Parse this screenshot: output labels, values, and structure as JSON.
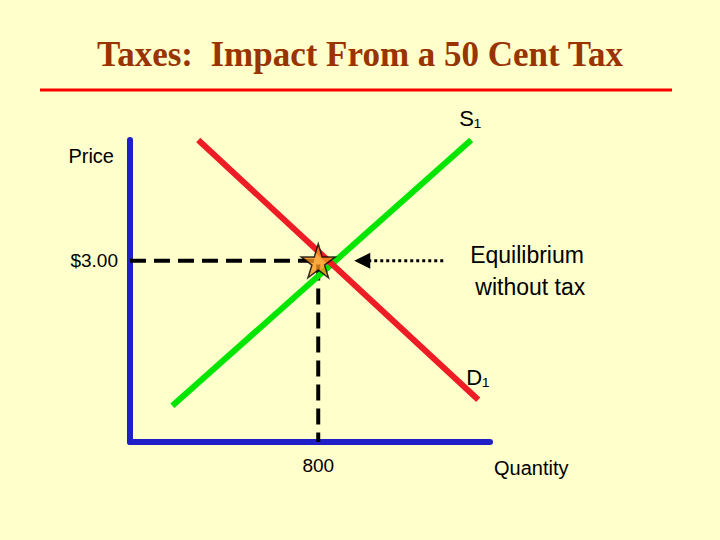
{
  "chart_data": {
    "type": "line",
    "title": "Taxes:  Impact From a 50 Cent Tax",
    "x_label": "Quantity",
    "y_label": "Price",
    "xlim": [
      0,
      1530
    ],
    "ylim": [
      0,
      5
    ],
    "xticks": [
      800
    ],
    "yticks": [
      {
        "value": 3,
        "label": "$3.00"
      }
    ],
    "grid": false,
    "series": [
      {
        "name": "S₁",
        "color": "#00e600",
        "x": [
          180,
          1450
        ],
        "values": [
          0.6,
          5.0
        ]
      },
      {
        "name": "D₁",
        "color": "#ee1c25",
        "x": [
          290,
          1480
        ],
        "values": [
          5.0,
          0.7
        ]
      }
    ],
    "equilibrium": {
      "label": "Equilibrium without tax",
      "x": 800,
      "y": 3,
      "marker": "star",
      "color": "#f7941d",
      "line_style": "dashed"
    }
  }
}
